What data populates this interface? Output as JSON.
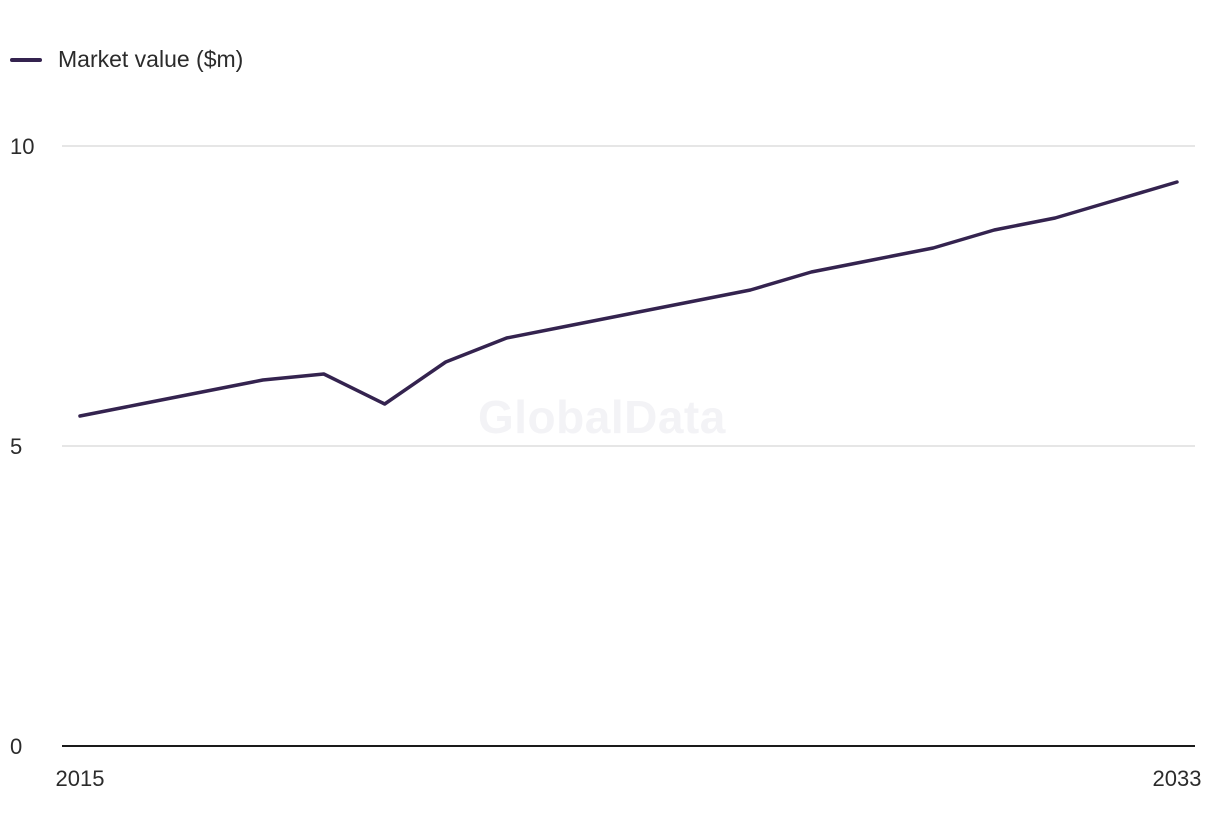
{
  "watermark": "GlobalData",
  "colors": {
    "series": "#34234f",
    "grid": "#d6d6d6",
    "axis": "#1a1a1a"
  },
  "chart_data": {
    "type": "line",
    "title": "",
    "xlabel": "",
    "ylabel": "",
    "legend_position": "top-left",
    "grid": true,
    "ylim": [
      0,
      10
    ],
    "xlim": [
      2015,
      2033
    ],
    "y_ticks": [
      "0",
      "5",
      "10"
    ],
    "x_tick_labels": [
      "2015",
      "2033"
    ],
    "x": [
      2015,
      2016,
      2017,
      2018,
      2019,
      2020,
      2021,
      2022,
      2023,
      2024,
      2025,
      2026,
      2027,
      2028,
      2029,
      2030,
      2031,
      2032,
      2033
    ],
    "series": [
      {
        "name": "Market value ($m)",
        "values": [
          5.5,
          5.7,
          5.9,
          6.1,
          6.2,
          5.7,
          6.4,
          6.8,
          7.0,
          7.2,
          7.4,
          7.6,
          7.9,
          8.1,
          8.3,
          8.6,
          8.8,
          9.1,
          9.4
        ]
      }
    ]
  }
}
